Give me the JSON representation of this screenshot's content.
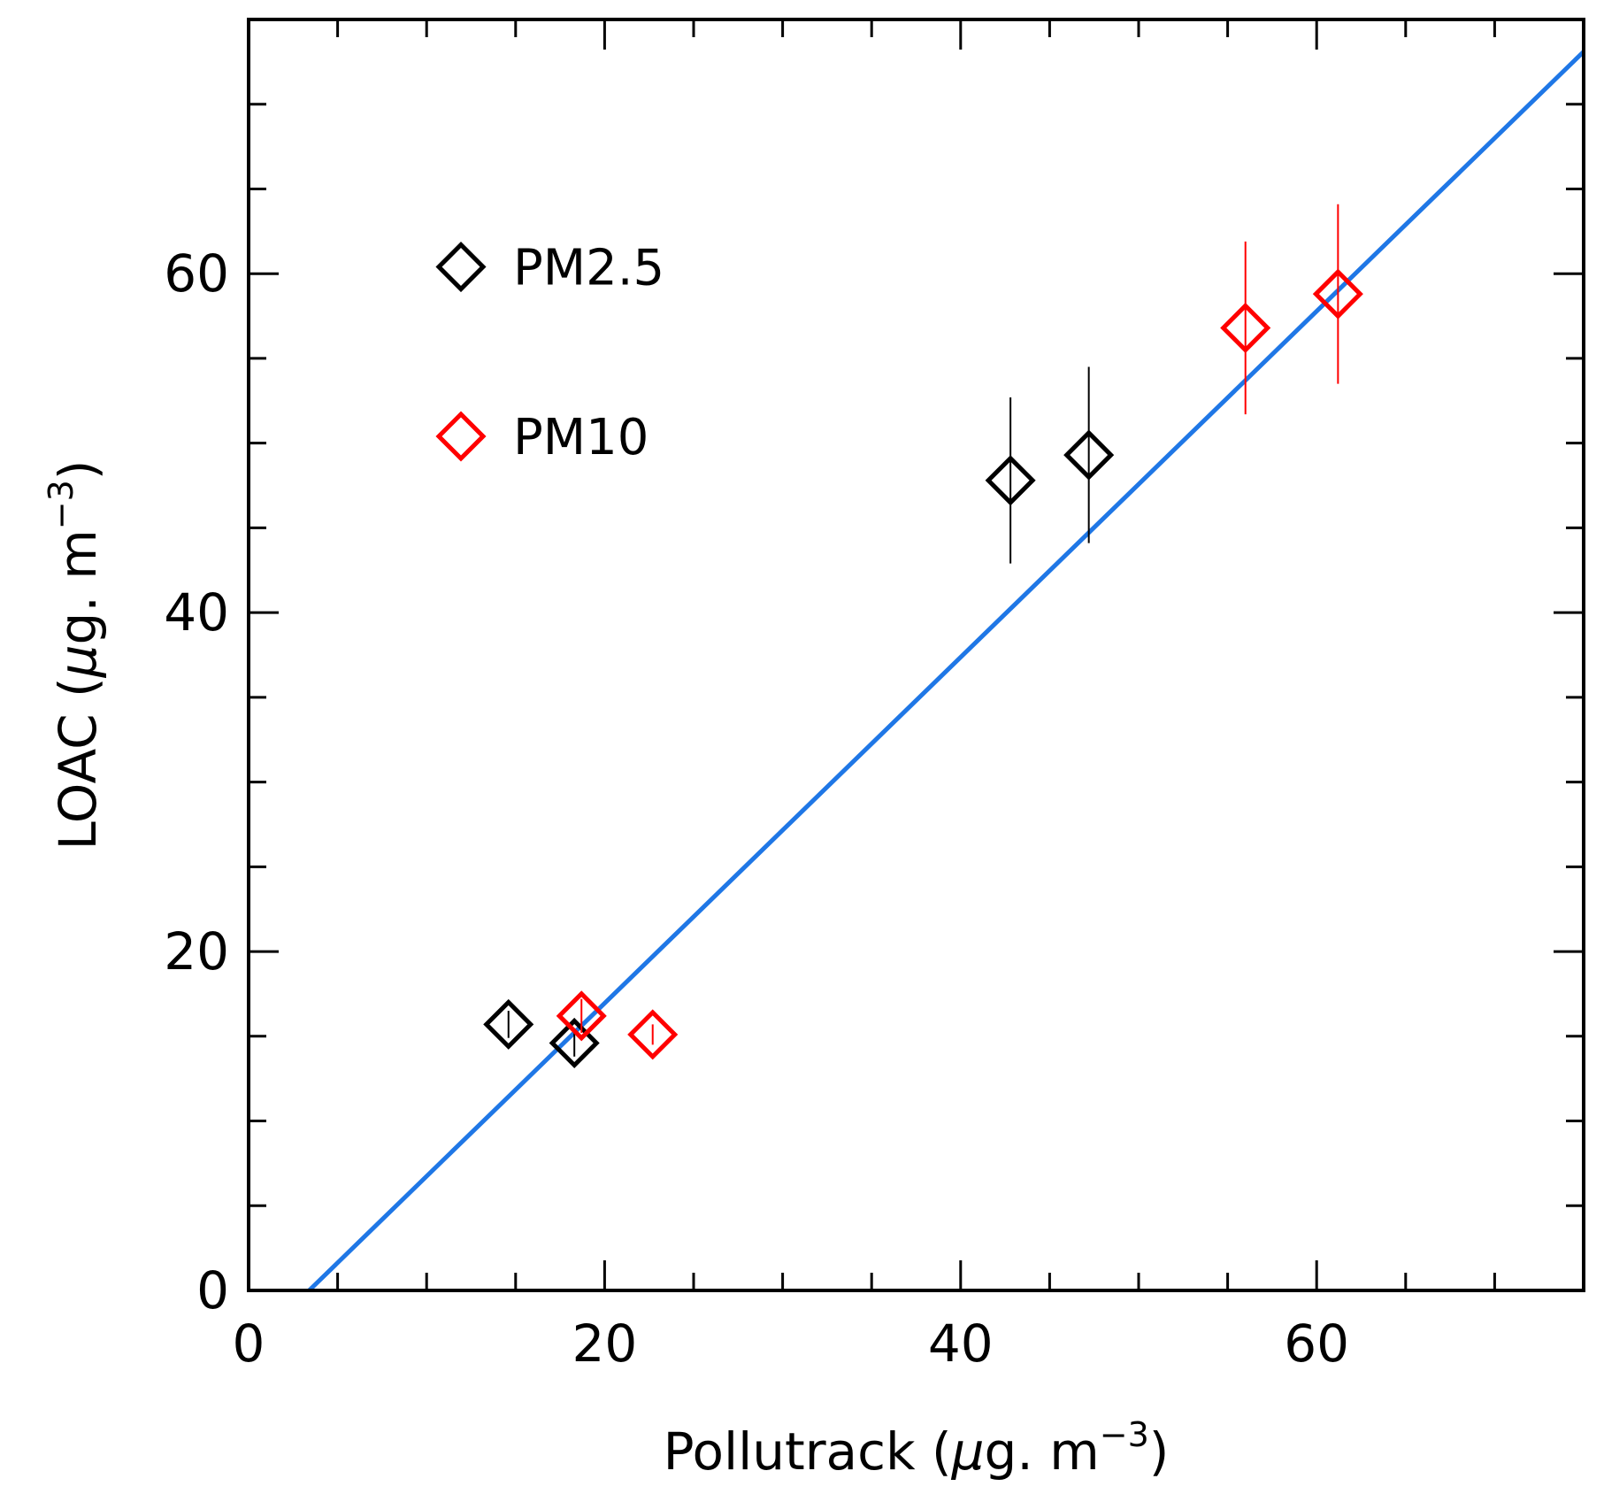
{
  "chart_data": {
    "type": "scatter",
    "title": "",
    "xlabel": {
      "main": "Pollutrack (",
      "mu": "μ",
      "rest": "g. m",
      "sup": "−3",
      "close": ")"
    },
    "ylabel": {
      "main": "LOAC (",
      "mu": "μ",
      "rest": "g. m",
      "sup": "−3",
      "close": ")"
    },
    "xlim": [
      0,
      75
    ],
    "ylim": [
      0,
      75
    ],
    "x_major_ticks": [
      0,
      20,
      40,
      60
    ],
    "y_major_ticks": [
      0,
      20,
      40,
      60
    ],
    "x_tick_labels": [
      "0",
      "20",
      "40",
      "60"
    ],
    "y_tick_labels": [
      "0",
      "20",
      "40",
      "60"
    ],
    "minor_tick_step": 5,
    "grid": false,
    "legend_position": "top-left",
    "series": [
      {
        "name": "PM2.5",
        "color": "#000000",
        "marker": "diamond-open",
        "points": [
          {
            "x": 14.6,
            "y": 15.7,
            "err": 0.8
          },
          {
            "x": 18.3,
            "y": 14.6,
            "err": 0.8
          },
          {
            "x": 42.8,
            "y": 47.8,
            "err": 4.9
          },
          {
            "x": 47.2,
            "y": 49.3,
            "err": 5.2
          }
        ]
      },
      {
        "name": "PM10",
        "color": "#ff0000",
        "marker": "diamond-open",
        "points": [
          {
            "x": 18.7,
            "y": 16.2,
            "err": 1.0
          },
          {
            "x": 22.7,
            "y": 15.1,
            "err": 0.6
          },
          {
            "x": 56.0,
            "y": 56.8,
            "err": 5.1
          },
          {
            "x": 61.2,
            "y": 58.8,
            "err": 5.3
          }
        ]
      }
    ],
    "fit_line": {
      "color": "#1f77e6",
      "x": [
        3.4,
        75
      ],
      "y": [
        0,
        73.1
      ]
    }
  }
}
